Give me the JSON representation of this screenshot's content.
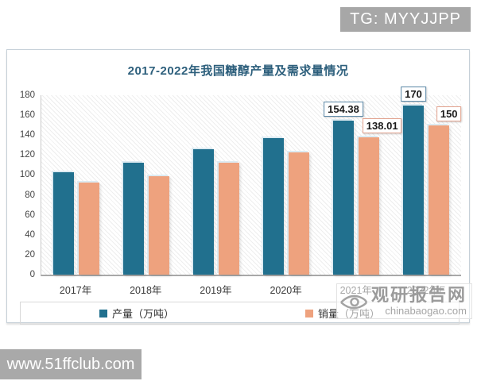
{
  "page": {
    "top_badge": "TG: MYYJJPP",
    "bottom_badge": "www.51ffclub.com"
  },
  "watermark": {
    "site_name": "观研报告网",
    "site_url": "chinabaogao.com"
  },
  "chart_data": {
    "type": "bar",
    "title": "2017-2022年我国糖醇产量及需求量情况",
    "categories": [
      "2017年",
      "2018年",
      "2019年",
      "2020年",
      "2021年",
      "2022年E"
    ],
    "series": [
      {
        "name": "产量（万吨）",
        "color": "#21708e",
        "label_border_color": "#5c89a8",
        "values": [
          103,
          112,
          126,
          137,
          154.38,
          170
        ],
        "point_labels": [
          null,
          null,
          null,
          null,
          "154.38",
          "170"
        ]
      },
      {
        "name": "销量（万吨）",
        "color": "#eea27e",
        "label_border_color": "#e2a28e",
        "values": [
          92.5,
          99,
          112,
          122.5,
          138.01,
          150
        ],
        "point_labels": [
          null,
          null,
          null,
          null,
          "138.01",
          "150"
        ]
      }
    ],
    "ylim": [
      0,
      180
    ],
    "ytick_step": 20,
    "grid": false,
    "legend_position": "bottom"
  }
}
